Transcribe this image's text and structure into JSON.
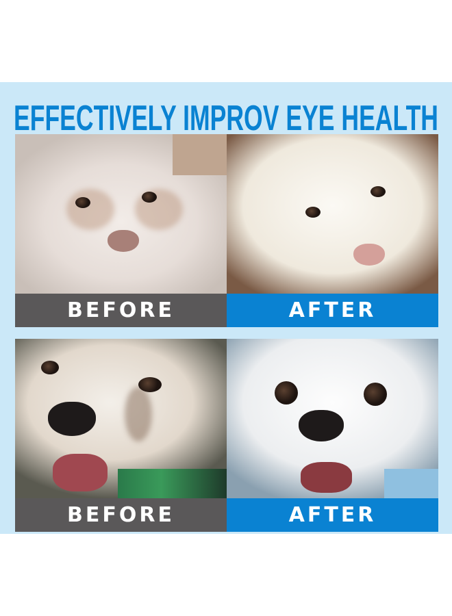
{
  "title": "EFFECTIVELY IMPROV EYE HEALTH",
  "panels": [
    {
      "label": "BEFORE",
      "kind": "before"
    },
    {
      "label": "AFTER",
      "kind": "after"
    },
    {
      "label": "BEFORE",
      "kind": "before"
    },
    {
      "label": "AFTER",
      "kind": "after"
    }
  ],
  "colors": {
    "background": "#cbe8f8",
    "title": "#0a82d2",
    "before_bar": "#5a5859",
    "after_bar": "#0a82d2"
  }
}
